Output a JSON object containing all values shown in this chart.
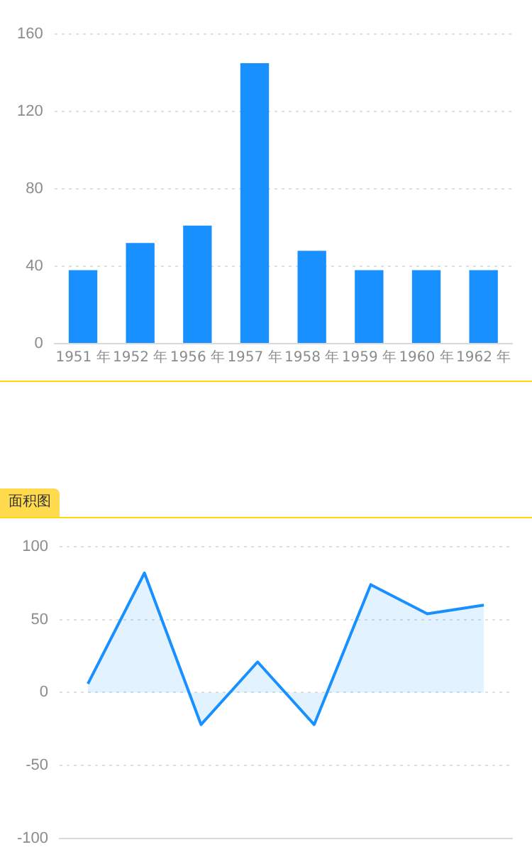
{
  "chart_data": [
    {
      "type": "bar",
      "categories": [
        "1951 年",
        "1952 年",
        "1956 年",
        "1957 年",
        "1958 年",
        "1959 年",
        "1960 年",
        "1962 年"
      ],
      "values": [
        38,
        52,
        61,
        145,
        48,
        38,
        38,
        38
      ],
      "color": "#1890ff",
      "ylim": [
        0,
        160
      ],
      "yticks": [
        0,
        40,
        80,
        120,
        160
      ],
      "grid": "y"
    },
    {
      "type": "area",
      "title": "面积图",
      "categories": [
        null,
        null,
        null,
        null,
        null,
        null,
        null,
        null
      ],
      "values": [
        6,
        82,
        -22,
        21,
        -22,
        74,
        54,
        60
      ],
      "color": "#1890ff",
      "ylim": [
        -100,
        100
      ],
      "yticks": [
        -100,
        -50,
        0,
        50,
        100
      ],
      "grid": "y",
      "tick_labels": "y"
    }
  ]
}
